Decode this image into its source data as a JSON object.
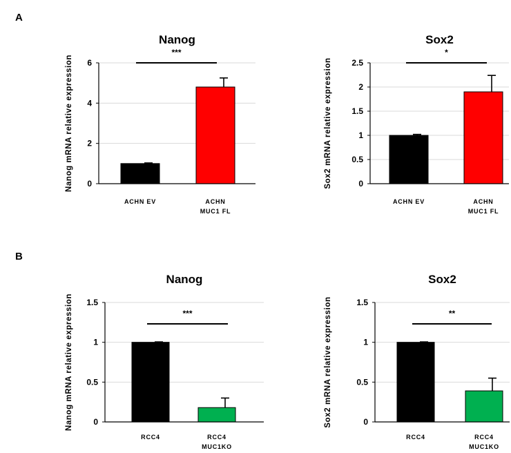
{
  "panel_labels": {
    "a": "A",
    "b": "B"
  },
  "colors": {
    "black": "#000000",
    "red": "#ff0000",
    "green": "#00b050",
    "grid": "#d9d9d9"
  },
  "chart_data": [
    {
      "type": "bar",
      "title": "Nanog",
      "ylabel": "Nanog mRNA relative expression",
      "categories": [
        [
          "ACHN EV"
        ],
        [
          "ACHN",
          "MUC1 FL"
        ]
      ],
      "values": [
        1.0,
        4.8
      ],
      "errors": [
        0.03,
        0.45
      ],
      "bar_colors": [
        "#000000",
        "#ff0000"
      ],
      "ylim": [
        0,
        6
      ],
      "yticks": [
        "0",
        "2",
        "4",
        "6"
      ],
      "significance": "***",
      "grid": true
    },
    {
      "type": "bar",
      "title": "Sox2",
      "ylabel": "Sox2 mRNA relative expression",
      "categories": [
        [
          "ACHN EV"
        ],
        [
          "ACHN",
          "MUC1 FL"
        ]
      ],
      "values": [
        1.0,
        1.9
      ],
      "errors": [
        0.02,
        0.34
      ],
      "bar_colors": [
        "#000000",
        "#ff0000"
      ],
      "ylim": [
        0,
        2.5
      ],
      "yticks": [
        "0",
        "0.5",
        "1",
        "1.5",
        "2",
        "2.5"
      ],
      "significance": "*",
      "grid": true
    },
    {
      "type": "bar",
      "title": "Nanog",
      "ylabel": "Nanog mRNA relative expression",
      "categories": [
        [
          "RCC4"
        ],
        [
          "RCC4",
          "MUC1KO"
        ]
      ],
      "values": [
        1.0,
        0.18
      ],
      "errors": [
        0.005,
        0.12
      ],
      "bar_colors": [
        "#000000",
        "#00b050"
      ],
      "ylim": [
        0,
        1.5
      ],
      "yticks": [
        "0",
        "0.5",
        "1",
        "1.5"
      ],
      "significance": "***",
      "grid": true
    },
    {
      "type": "bar",
      "title": "Sox2",
      "ylabel": "Sox2 mRNA relative expression",
      "categories": [
        [
          "RCC4"
        ],
        [
          "RCC4",
          "MUC1KO"
        ]
      ],
      "values": [
        1.0,
        0.39
      ],
      "errors": [
        0.005,
        0.16
      ],
      "bar_colors": [
        "#000000",
        "#00b050"
      ],
      "ylim": [
        0,
        1.5
      ],
      "yticks": [
        "0",
        "0.5",
        "1",
        "1.5"
      ],
      "significance": "**",
      "grid": true
    }
  ]
}
